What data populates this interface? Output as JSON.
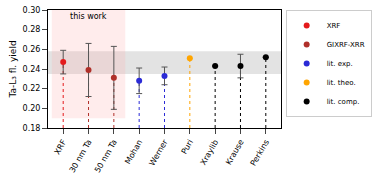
{
  "chart_data": {
    "type": "scatter",
    "y_label": "Ta-L₃ fl. yield",
    "categories": [
      "XRF",
      "30 nm Ta",
      "50 nm Ta",
      "Mohan",
      "Werner",
      "Puri",
      "Xraylib",
      "Krause",
      "Perkins"
    ],
    "series": [
      {
        "name": "XRF",
        "color": "#e41a1c",
        "values": [
          0.247,
          null,
          null,
          null,
          null,
          null,
          null,
          null,
          null
        ],
        "errors": [
          0.012,
          null,
          null,
          null,
          null,
          null,
          null,
          null,
          null
        ]
      },
      {
        "name": "GIXRF-XRR",
        "color": "#b0302a",
        "values": [
          null,
          0.239,
          0.231,
          null,
          null,
          null,
          null,
          null,
          null
        ],
        "errors": [
          null,
          0.027,
          0.032,
          null,
          null,
          null,
          null,
          null,
          null
        ]
      },
      {
        "name": "lit. exp.",
        "color": "#2b2bd6",
        "values": [
          null,
          null,
          null,
          0.228,
          0.233,
          null,
          null,
          null,
          null
        ],
        "errors": [
          null,
          null,
          null,
          0.013,
          0.009,
          null,
          null,
          null,
          null
        ]
      },
      {
        "name": "lit. theo.",
        "color": "#ffa500",
        "values": [
          null,
          null,
          null,
          null,
          null,
          0.251,
          null,
          null,
          null
        ],
        "errors": [
          null,
          null,
          null,
          null,
          null,
          null,
          null,
          null,
          null
        ]
      },
      {
        "name": "lit. comp.",
        "color": "#000000",
        "values": [
          null,
          null,
          null,
          null,
          null,
          null,
          0.243,
          0.243,
          0.252
        ],
        "errors": [
          null,
          null,
          null,
          null,
          null,
          null,
          null,
          0.012,
          null
        ]
      }
    ],
    "ylim": [
      0.18,
      0.3
    ],
    "yticks": [
      0.18,
      {
        "value": 0.2,
        "label": "0.20"
      },
      0.22,
      0.24,
      0.26,
      0.28,
      {
        "value": 0.3,
        "label": "0.30"
      }
    ],
    "band": [
      0.235,
      0.258
    ],
    "highlight": {
      "label": "this work",
      "categories": [
        "XRF",
        "30 nm Ta",
        "50 nm Ta"
      ],
      "ylim": [
        0.19,
        0.3
      ]
    },
    "legend": "right",
    "marker": "circle",
    "line_style": "dotted",
    "grid": false
  }
}
